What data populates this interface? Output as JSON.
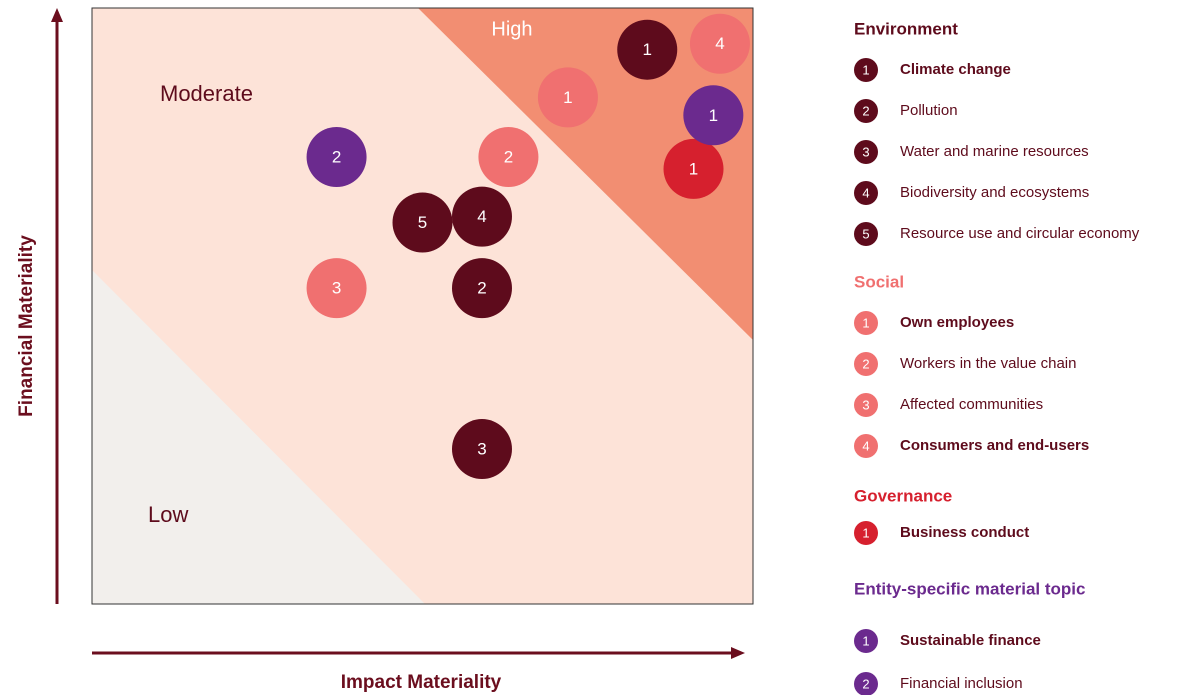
{
  "chart_data": {
    "type": "scatter",
    "xlabel": "Impact Materiality",
    "ylabel": "Financial Materiality",
    "xlim": [
      0,
      100
    ],
    "ylim": [
      0,
      100
    ],
    "annotations": [
      "High",
      "Moderate",
      "Low"
    ],
    "series": [
      {
        "name": "Environment",
        "color": "#5e0b1c",
        "x": [
          84,
          59,
          59,
          59,
          50
        ],
        "values": [
          93,
          53,
          26,
          65,
          64
        ],
        "labels": [
          1,
          2,
          3,
          4,
          5
        ],
        "items": [
          "Climate change",
          "Pollution",
          "Water and marine resources",
          "Biodiversity and ecosystems",
          "Resource use and circular economy"
        ],
        "bold": [
          true,
          false,
          false,
          false,
          false
        ]
      },
      {
        "name": "Social",
        "color": "#f07070",
        "x": [
          72,
          63,
          37,
          95
        ],
        "values": [
          85,
          75,
          53,
          94
        ],
        "labels": [
          1,
          2,
          3,
          4
        ],
        "items": [
          "Own employees",
          "Workers in the value chain",
          "Affected communities",
          "Consumers and end-users"
        ],
        "bold": [
          true,
          false,
          false,
          true
        ]
      },
      {
        "name": "Governance",
        "color": "#d6202e",
        "x": [
          91
        ],
        "values": [
          73
        ],
        "labels": [
          1
        ],
        "items": [
          "Business conduct"
        ],
        "bold": [
          true
        ]
      },
      {
        "name": "Entity-specific material topic",
        "color": "#6b2a8e",
        "x": [
          94,
          37
        ],
        "values": [
          82,
          75
        ],
        "labels": [
          1,
          2
        ],
        "items": [
          "Sustainable finance",
          "Financial inclusion"
        ],
        "bold": [
          true,
          false
        ]
      }
    ]
  }
}
